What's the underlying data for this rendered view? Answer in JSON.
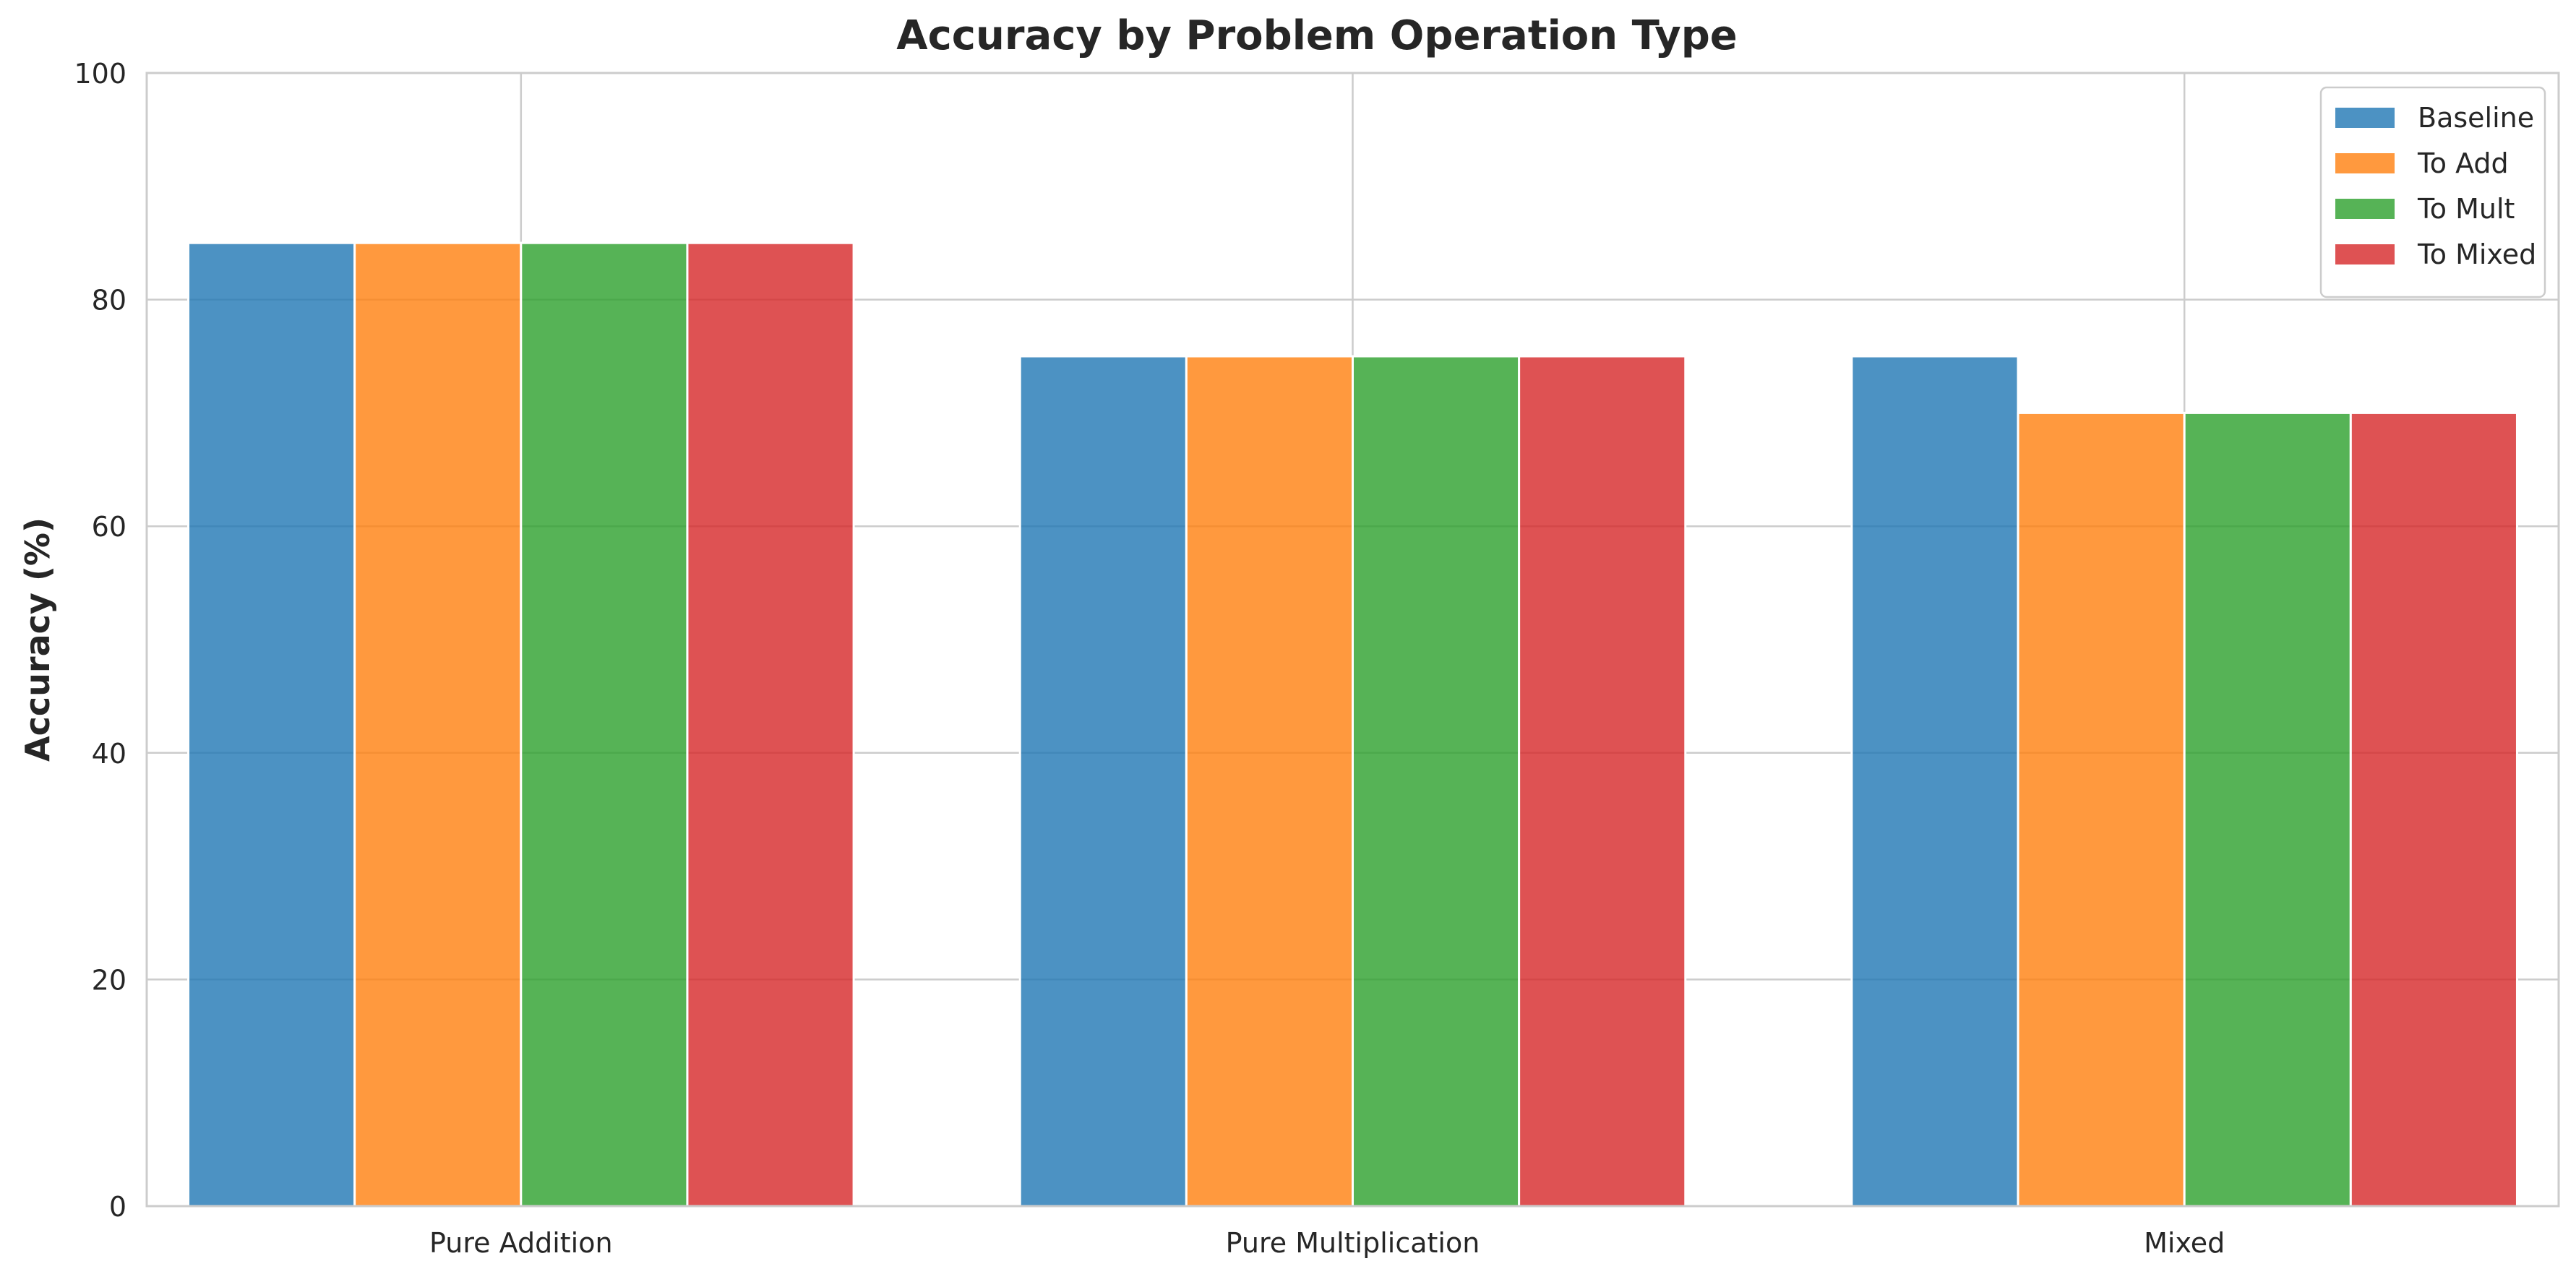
{
  "chart_data": {
    "type": "bar",
    "title": "Accuracy by Problem Operation Type",
    "xlabel": "",
    "ylabel": "Accuracy (%)",
    "categories": [
      "Pure Addition",
      "Pure Multiplication",
      "Mixed"
    ],
    "series": [
      {
        "name": "Baseline",
        "color": "#1f77b4",
        "values": [
          85,
          75,
          75
        ]
      },
      {
        "name": "To Add",
        "color": "#ff7f0e",
        "values": [
          85,
          75,
          70
        ]
      },
      {
        "name": "To Mult",
        "color": "#2ca02c",
        "values": [
          85,
          75,
          70
        ]
      },
      {
        "name": "To Mixed",
        "color": "#d62728",
        "values": [
          85,
          75,
          70
        ]
      }
    ],
    "ylim": [
      0,
      100
    ],
    "yticks": [
      0,
      20,
      40,
      60,
      80,
      100
    ],
    "grid": true,
    "legend": "top-right"
  }
}
